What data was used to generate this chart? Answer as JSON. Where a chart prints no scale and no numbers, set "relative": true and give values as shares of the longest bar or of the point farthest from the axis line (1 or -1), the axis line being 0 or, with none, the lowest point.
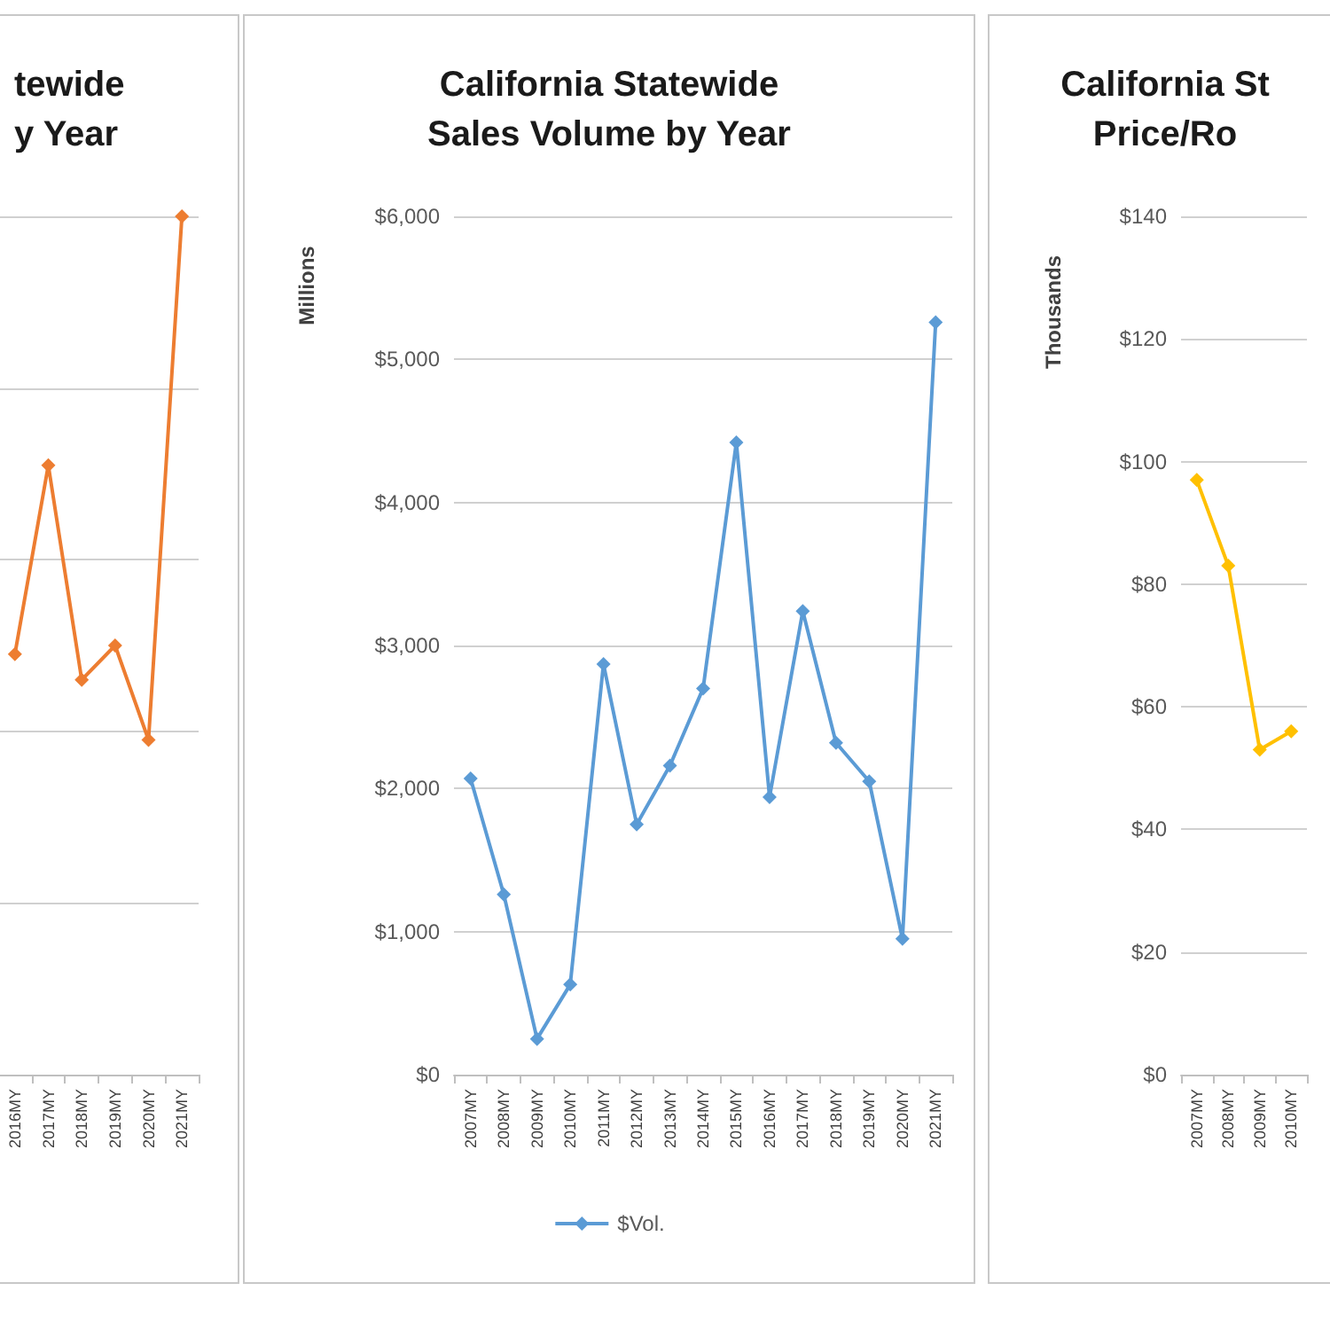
{
  "chart_data": [
    {
      "type": "line",
      "title": "tewide\ny Year",
      "categories": [
        "2016MY",
        "2017MY",
        "2018MY",
        "2019MY",
        "2020MY",
        "2021MY"
      ],
      "relative": true,
      "grid": "y",
      "marker": "diamond",
      "legend": false,
      "series": [
        {
          "color": "#ed7d31",
          "values": [
            0.49,
            0.71,
            0.46,
            0.5,
            0.39,
            1
          ]
        }
      ]
    },
    {
      "type": "line",
      "title": "California Statewide\nSales Volume by Year",
      "ylabel": "Millions",
      "categories": [
        "2007MY",
        "2008MY",
        "2009MY",
        "2010MY",
        "2011MY",
        "2012MY",
        "2013MY",
        "2014MY",
        "2015MY",
        "2016MY",
        "2017MY",
        "2018MY",
        "2019MY",
        "2020MY",
        "2021MY"
      ],
      "ylim": [
        0,
        6000
      ],
      "yticks": [
        {
          "value": 0,
          "label": "$0"
        },
        {
          "value": 1000,
          "label": "$1,000"
        },
        {
          "value": 2000,
          "label": "$2,000"
        },
        {
          "value": 3000,
          "label": "$3,000"
        },
        {
          "value": 4000,
          "label": "$4,000"
        },
        {
          "value": 5000,
          "label": "$5,000"
        },
        {
          "value": 6000,
          "label": "$6,000"
        }
      ],
      "grid": "y",
      "marker": "diamond",
      "legend": "bottom",
      "series": [
        {
          "name": "$Vol.",
          "color": "#5b9bd5",
          "values": [
            2070,
            1260,
            250,
            630,
            2870,
            1750,
            2160,
            2700,
            4420,
            1940,
            3240,
            2320,
            2050,
            950,
            5260
          ]
        }
      ]
    },
    {
      "type": "line",
      "title": "California St\nPrice/Ro",
      "ylabel": "Thousands",
      "categories": [
        "2007MY",
        "2008MY",
        "2009MY",
        "2010MY"
      ],
      "ylim": [
        0,
        140
      ],
      "yticks": [
        {
          "value": 0,
          "label": "$0"
        },
        {
          "value": 20,
          "label": "$20"
        },
        {
          "value": 40,
          "label": "$40"
        },
        {
          "value": 60,
          "label": "$60"
        },
        {
          "value": 80,
          "label": "$80"
        },
        {
          "value": 100,
          "label": "$100"
        },
        {
          "value": 120,
          "label": "$120"
        },
        {
          "value": 140,
          "label": "$140"
        }
      ],
      "grid": "y",
      "marker": "diamond",
      "legend": false,
      "series": [
        {
          "color": "#ffc000",
          "values": [
            97,
            83,
            53,
            56
          ]
        }
      ]
    }
  ]
}
